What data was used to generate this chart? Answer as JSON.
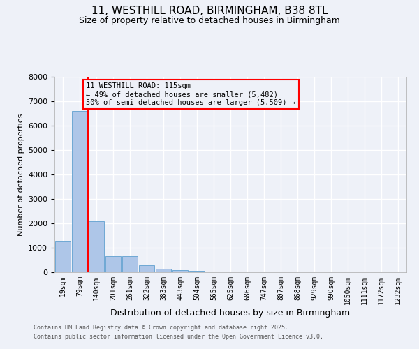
{
  "title1": "11, WESTHILL ROAD, BIRMINGHAM, B38 8TL",
  "title2": "Size of property relative to detached houses in Birmingham",
  "xlabel": "Distribution of detached houses by size in Birmingham",
  "ylabel": "Number of detached properties",
  "bar_labels": [
    "19sqm",
    "79sqm",
    "140sqm",
    "201sqm",
    "261sqm",
    "322sqm",
    "383sqm",
    "443sqm",
    "504sqm",
    "565sqm",
    "625sqm",
    "686sqm",
    "747sqm",
    "807sqm",
    "868sqm",
    "929sqm",
    "990sqm",
    "1050sqm",
    "1111sqm",
    "1172sqm",
    "1232sqm"
  ],
  "bar_values": [
    1300,
    6600,
    2100,
    650,
    650,
    300,
    130,
    100,
    50,
    30,
    10,
    5,
    5,
    5,
    0,
    0,
    0,
    0,
    0,
    0,
    0
  ],
  "bar_color": "#aec6e8",
  "bar_edgecolor": "#6fa8d4",
  "vline_color": "red",
  "vline_pos": 1.5,
  "annotation_text": "11 WESTHILL ROAD: 115sqm\n← 49% of detached houses are smaller (5,482)\n50% of semi-detached houses are larger (5,509) →",
  "annotation_box_edgecolor": "red",
  "ylim": [
    0,
    8000
  ],
  "yticks": [
    0,
    1000,
    2000,
    3000,
    4000,
    5000,
    6000,
    7000,
    8000
  ],
  "footer1": "Contains HM Land Registry data © Crown copyright and database right 2025.",
  "footer2": "Contains public sector information licensed under the Open Government Licence v3.0.",
  "bg_color": "#eef1f8",
  "grid_color": "#ffffff"
}
